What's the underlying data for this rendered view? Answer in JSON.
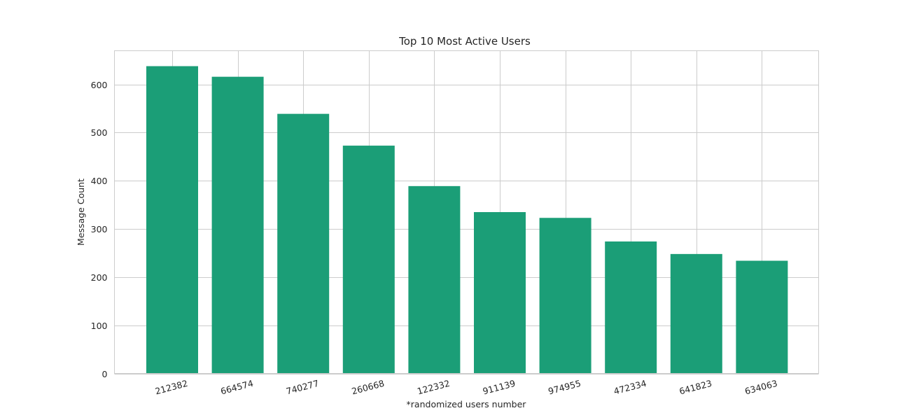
{
  "chart_data": {
    "type": "bar",
    "title": "Top 10 Most Active Users",
    "xlabel": "*randomized users number",
    "ylabel": "Message Count",
    "categories": [
      "212382",
      "664574",
      "740277",
      "260668",
      "122332",
      "911139",
      "974955",
      "472334",
      "641823",
      "634063"
    ],
    "values": [
      638,
      616,
      539,
      473,
      389,
      335,
      323,
      274,
      248,
      234
    ],
    "yticks": [
      0,
      100,
      200,
      300,
      400,
      500,
      600
    ],
    "ylim": [
      0,
      670
    ],
    "grid": true,
    "bar_color": "#1b9e77",
    "grid_color": "#cccccc",
    "text_color": "#262626"
  }
}
